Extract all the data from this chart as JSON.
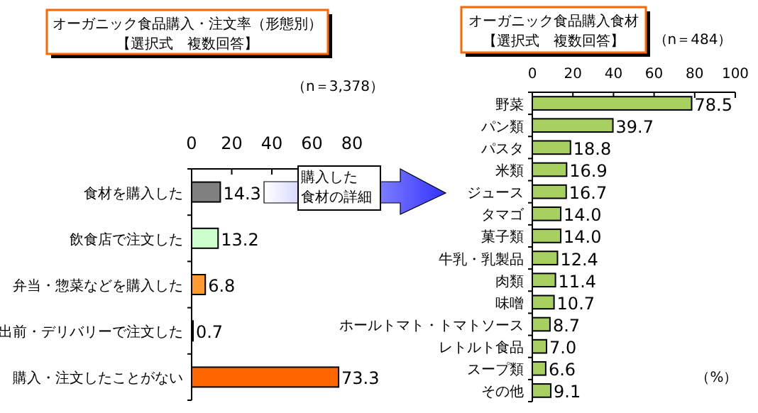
{
  "chart_data": [
    {
      "type": "bar",
      "orientation": "horizontal",
      "title": "オーガニック食品購入・注文率（形態別）【選択式　複数回答】",
      "categories": [
        "食材を購入した",
        "飲食店で注文した",
        "弁当・惣菜などを購入した",
        "出前・デリバリーで注文した",
        "購入・注文したことがない"
      ],
      "values": [
        14.3,
        13.2,
        6.8,
        0.7,
        73.3
      ],
      "colors": [
        "#808080",
        "#ccffcc",
        "#ff9933",
        "#000000",
        "#ff6600"
      ],
      "value_labels": [
        "14.3",
        "13.2",
        "6.8",
        "0.7",
        "73.3"
      ],
      "xlim": [
        0,
        80
      ],
      "xticks": [
        0,
        20,
        40,
        60,
        80
      ],
      "annotations": [
        "（n＝3,378）",
        "購入した食材の詳細"
      ]
    },
    {
      "type": "bar",
      "orientation": "horizontal",
      "title": "オーガニック食品購入食材【選択式　複数回答】",
      "categories": [
        "野菜",
        "パン類",
        "パスタ",
        "米類",
        "ジュース",
        "タマゴ",
        "菓子類",
        "牛乳・乳製品",
        "肉類",
        "味噌",
        "ホールトマト・トマトソース",
        "レトルト食品",
        "スープ類",
        "その他"
      ],
      "values": [
        78.5,
        39.7,
        18.8,
        16.9,
        16.7,
        14.0,
        14.0,
        12.4,
        11.4,
        10.7,
        8.7,
        7.0,
        6.6,
        9.1
      ],
      "colors": [
        "#a8d060",
        "#a8d060",
        "#a8d060",
        "#a8d060",
        "#a8d060",
        "#a8d060",
        "#a8d060",
        "#a8d060",
        "#a8d060",
        "#a8d060",
        "#a8d060",
        "#a8d060",
        "#a8d060",
        "#a8d060"
      ],
      "value_labels": [
        "78.5",
        "39.7",
        "18.8",
        "16.9",
        "16.7",
        "14.0",
        "14.0",
        "12.4",
        "11.4",
        "10.7",
        "8.7",
        "7.0",
        "6.6",
        "9.1"
      ],
      "xlim": [
        0,
        100
      ],
      "xticks": [
        0,
        20,
        40,
        60,
        80,
        100
      ],
      "annotations": [
        "（n＝484）",
        "（%）"
      ]
    }
  ]
}
